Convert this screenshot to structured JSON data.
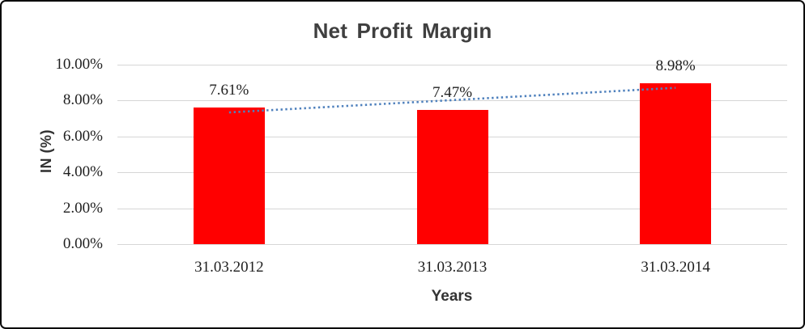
{
  "frame": {
    "background": "#ffffff",
    "border_color": "#0a0a0a"
  },
  "chart_data": {
    "type": "bar",
    "title": "Net Profit Margin",
    "categories": [
      "31.03.2012",
      "31.03.2013",
      "31.03.2014"
    ],
    "values": [
      7.61,
      7.47,
      8.98
    ],
    "data_labels": [
      "7.61%",
      "7.47%",
      "8.98%"
    ],
    "xlabel": "Years",
    "ylabel": "IN (%)",
    "ylim": [
      0,
      10
    ],
    "ytick_step": 2,
    "yticks": [
      {
        "value": 0,
        "label": "0.00%"
      },
      {
        "value": 2,
        "label": "2.00%"
      },
      {
        "value": 4,
        "label": "4.00%"
      },
      {
        "value": 6,
        "label": "6.00%"
      },
      {
        "value": 8,
        "label": "8.00%"
      },
      {
        "value": 10,
        "label": "10.00%"
      }
    ],
    "grid": true,
    "legend": "none",
    "bar_color": "#ff0000",
    "grid_color": "#d6d6d6",
    "title_color": "#3f3f3f",
    "axis_label_color": "#1f1f1f",
    "trendline": {
      "type": "linear",
      "style": "dotted",
      "color": "#4f81bd",
      "start_value": 7.34,
      "end_value": 8.71
    }
  }
}
